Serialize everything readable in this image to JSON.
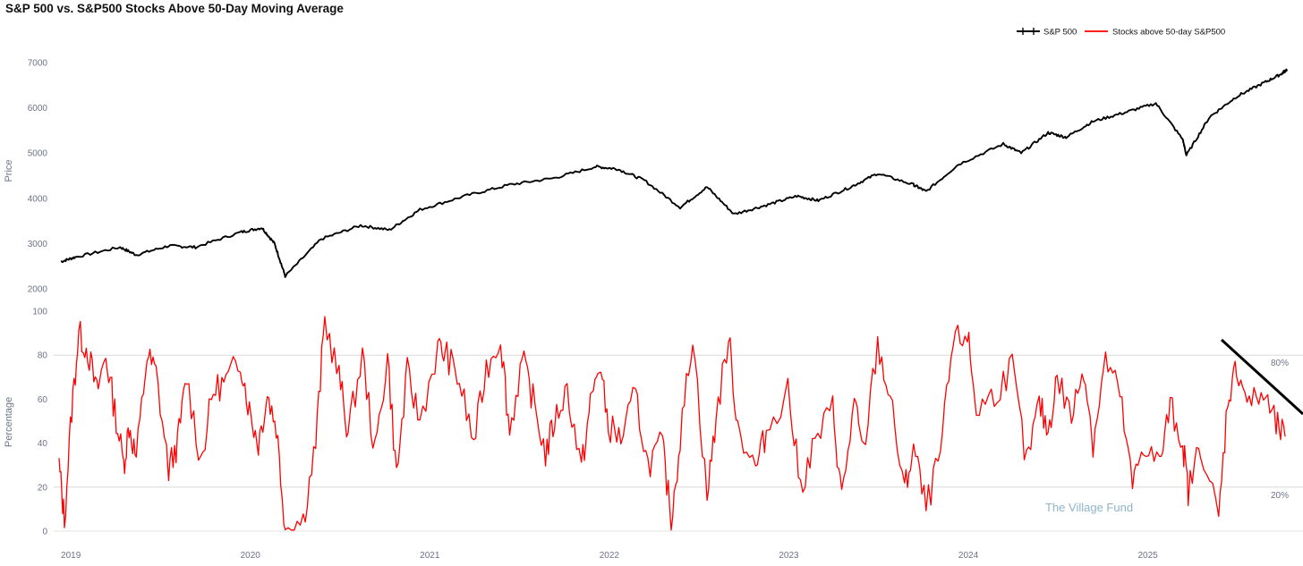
{
  "title": "S&P 500 vs. S&P500 Stocks Above 50-Day Moving Average",
  "watermark": "The Village Fund",
  "legend": [
    {
      "label": "S&P 500",
      "color": "#000000"
    },
    {
      "label": "Stocks above 50-day S&P500",
      "color": "#ff0000"
    }
  ],
  "chart_data": [
    {
      "type": "line",
      "legend_placement": "top-right",
      "ylabel": "Price",
      "ylim": [
        2000,
        7000
      ],
      "yticks": [
        2000,
        3000,
        4000,
        5000,
        6000,
        7000
      ],
      "grid": false,
      "series": [
        {
          "name": "S&P 500",
          "color": "#000000",
          "x": [
            2019.0,
            2019.08,
            2019.33,
            2019.42,
            2019.6,
            2019.75,
            2020.0,
            2020.12,
            2020.19,
            2020.25,
            2020.45,
            2020.67,
            2020.83,
            2021.0,
            2021.25,
            2021.5,
            2021.75,
            2021.98,
            2022.1,
            2022.25,
            2022.45,
            2022.6,
            2022.75,
            2022.93,
            2023.1,
            2023.22,
            2023.4,
            2023.55,
            2023.75,
            2023.82,
            2024.0,
            2024.25,
            2024.35,
            2024.5,
            2024.6,
            2024.75,
            2024.93,
            2025.1,
            2025.25,
            2025.27,
            2025.4,
            2025.55,
            2025.7,
            2025.8,
            2025.83
          ],
          "y": [
            2600,
            2700,
            2920,
            2750,
            2950,
            2920,
            3250,
            3350,
            3000,
            2280,
            3100,
            3400,
            3300,
            3750,
            4050,
            4300,
            4450,
            4700,
            4650,
            4400,
            3800,
            4250,
            3650,
            3850,
            4050,
            3950,
            4250,
            4550,
            4300,
            4150,
            4750,
            5200,
            5000,
            5450,
            5350,
            5700,
            5900,
            6100,
            5300,
            4950,
            5800,
            6250,
            6550,
            6750,
            6850
          ]
        }
      ]
    },
    {
      "type": "line",
      "ylabel": "Percentage",
      "ylim": [
        0,
        100
      ],
      "yticks": [
        0,
        20,
        40,
        60,
        80,
        100
      ],
      "reference_lines": [
        {
          "value": 80,
          "label": "80%"
        },
        {
          "value": 20,
          "label": "20%"
        }
      ],
      "x_tick_labels": [
        "2019",
        "2020",
        "2021",
        "2022",
        "2023",
        "2024",
        "2025"
      ],
      "x_tick_values": [
        2019,
        2020,
        2021,
        2022,
        2023,
        2024,
        2025
      ],
      "xlim": [
        2018.96,
        2025.85
      ],
      "series": [
        {
          "name": "Stocks above 50-day S&P500",
          "color": "#ff0000",
          "x": [
            2018.99,
            2019.02,
            2019.06,
            2019.1,
            2019.15,
            2019.2,
            2019.25,
            2019.3,
            2019.35,
            2019.38,
            2019.42,
            2019.48,
            2019.53,
            2019.6,
            2019.65,
            2019.7,
            2019.78,
            2019.85,
            2019.92,
            2020.0,
            2020.05,
            2020.1,
            2020.15,
            2020.2,
            2020.25,
            2020.35,
            2020.42,
            2020.47,
            2020.55,
            2020.6,
            2020.68,
            2020.75,
            2020.82,
            2020.87,
            2020.93,
            2021.0,
            2021.1,
            2021.15,
            2021.22,
            2021.3,
            2021.37,
            2021.45,
            2021.5,
            2021.57,
            2021.63,
            2021.7,
            2021.75,
            2021.82,
            2021.9,
            2021.95,
            2022.0,
            2022.05,
            2022.12,
            2022.2,
            2022.27,
            2022.35,
            2022.4,
            2022.45,
            2022.52,
            2022.6,
            2022.65,
            2022.72,
            2022.77,
            2022.87,
            2022.93,
            2023.05,
            2023.12,
            2023.2,
            2023.3,
            2023.35,
            2023.42,
            2023.47,
            2023.55,
            2023.62,
            2023.7,
            2023.75,
            2023.82,
            2023.9,
            2023.97,
            2024.05,
            2024.1,
            2024.2,
            2024.3,
            2024.38,
            2024.45,
            2024.5,
            2024.55,
            2024.63,
            2024.7,
            2024.75,
            2024.82,
            2024.9,
            2024.97,
            2025.03,
            2025.12,
            2025.18,
            2025.25,
            2025.28,
            2025.35,
            2025.45,
            2025.5,
            2025.55,
            2025.62,
            2025.7,
            2025.77,
            2025.82
          ],
          "y": [
            30,
            5,
            55,
            90,
            82,
            63,
            80,
            55,
            30,
            48,
            33,
            80,
            72,
            28,
            40,
            70,
            32,
            64,
            68,
            78,
            55,
            40,
            62,
            48,
            2,
            5,
            40,
            96,
            70,
            45,
            80,
            35,
            80,
            25,
            72,
            50,
            83,
            80,
            68,
            40,
            74,
            88,
            45,
            78,
            60,
            35,
            50,
            65,
            28,
            58,
            76,
            48,
            42,
            62,
            30,
            40,
            5,
            42,
            90,
            15,
            52,
            88,
            48,
            28,
            45,
            65,
            20,
            40,
            56,
            15,
            58,
            35,
            85,
            60,
            18,
            38,
            10,
            35,
            85,
            90,
            55,
            62,
            75,
            30,
            58,
            45,
            70,
            52,
            75,
            40,
            78,
            62,
            20,
            40,
            30,
            57,
            40,
            18,
            40,
            5,
            60,
            75,
            58,
            62,
            48,
            43
          ]
        }
      ]
    }
  ]
}
